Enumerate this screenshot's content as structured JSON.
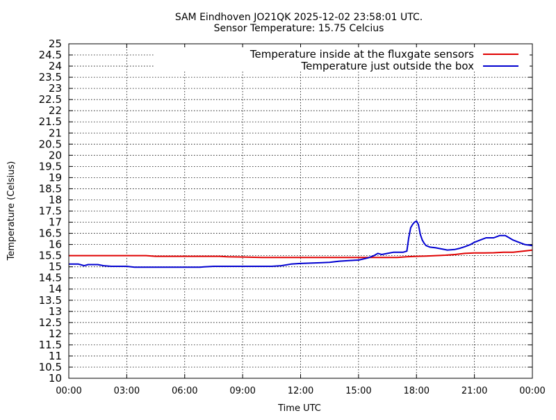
{
  "chart_data": {
    "type": "line",
    "title": "SAM Eindhoven JO21QK 2025-12-02 23:58:01 UTC.",
    "subtitle": "Sensor Temperature: 15.75 Celcius",
    "xlabel": "Time UTC",
    "ylabel": "Temperature (Celsius)",
    "xlim": [
      0,
      24
    ],
    "ylim": [
      10,
      25
    ],
    "grid": true,
    "legend_placement": "top-right",
    "x_ticks": [
      0,
      3,
      6,
      9,
      12,
      15,
      18,
      21,
      24
    ],
    "x_tick_labels": [
      "00:00",
      "03:00",
      "06:00",
      "09:00",
      "12:00",
      "15:00",
      "18:00",
      "21:00",
      "00:00"
    ],
    "y_ticks": [
      10,
      10.5,
      11,
      11.5,
      12,
      12.5,
      13,
      13.5,
      14,
      14.5,
      15,
      15.5,
      16,
      16.5,
      17,
      17.5,
      18,
      18.5,
      19,
      19.5,
      20,
      20.5,
      21,
      21.5,
      22,
      22.5,
      23,
      23.5,
      24,
      24.5,
      25
    ],
    "y_tick_labels": [
      "10",
      "10.5",
      "11",
      "11.5",
      "12",
      "12.5",
      "13",
      "13.5",
      "14",
      "14.5",
      "15",
      "15.5",
      "16",
      "16.5",
      "17",
      "17.5",
      "18",
      "18.5",
      "19",
      "19.5",
      "20",
      "20.5",
      "21",
      "21.5",
      "22",
      "22.5",
      "23",
      "23.5",
      "24",
      "24.5",
      "25"
    ],
    "series": [
      {
        "name": "Temperature inside at the fluxgate sensors",
        "color": "#e00000",
        "x": [
          0,
          1,
          2,
          3,
          3.5,
          4,
          4.5,
          5,
          6,
          7,
          7.8,
          8.2,
          9,
          10,
          11,
          12,
          13,
          14,
          15,
          15.5,
          16,
          16.5,
          17,
          17.5,
          18,
          18.5,
          19,
          19.5,
          20,
          20.5,
          21,
          21.5,
          22,
          22.5,
          23,
          23.3,
          23.7,
          24
        ],
        "y": [
          15.5,
          15.5,
          15.5,
          15.5,
          15.5,
          15.5,
          15.47,
          15.47,
          15.47,
          15.47,
          15.47,
          15.45,
          15.44,
          15.42,
          15.42,
          15.42,
          15.42,
          15.42,
          15.42,
          15.42,
          15.42,
          15.42,
          15.42,
          15.45,
          15.47,
          15.48,
          15.5,
          15.52,
          15.55,
          15.6,
          15.62,
          15.62,
          15.63,
          15.65,
          15.65,
          15.68,
          15.72,
          15.75
        ]
      },
      {
        "name": "Temperature just outside the box",
        "color": "#0000d0",
        "x": [
          0,
          0.5,
          0.8,
          1.0,
          1.5,
          1.8,
          2.2,
          3.0,
          3.4,
          4.0,
          5.0,
          6.0,
          6.8,
          7.0,
          7.5,
          8.0,
          9.0,
          10.0,
          10.5,
          11.0,
          11.5,
          12.0,
          13.0,
          13.5,
          14.0,
          14.5,
          15.0,
          15.5,
          15.8,
          16.0,
          16.2,
          16.5,
          16.8,
          17.0,
          17.3,
          17.5,
          17.6,
          17.7,
          17.8,
          17.9,
          18.0,
          18.1,
          18.2,
          18.3,
          18.4,
          18.5,
          18.7,
          19.0,
          19.3,
          19.6,
          20.0,
          20.2,
          20.5,
          20.8,
          21.0,
          21.3,
          21.6,
          22.0,
          22.3,
          22.6,
          22.8,
          23.0,
          23.3,
          23.6,
          24.0
        ],
        "y": [
          15.12,
          15.12,
          15.05,
          15.1,
          15.1,
          15.05,
          15.02,
          15.02,
          14.98,
          14.98,
          14.98,
          14.98,
          14.98,
          15.0,
          15.02,
          15.02,
          15.02,
          15.02,
          15.02,
          15.05,
          15.12,
          15.15,
          15.18,
          15.2,
          15.25,
          15.28,
          15.3,
          15.4,
          15.5,
          15.6,
          15.55,
          15.6,
          15.65,
          15.65,
          15.65,
          15.7,
          16.3,
          16.75,
          16.9,
          17.0,
          17.05,
          16.9,
          16.45,
          16.2,
          16.05,
          15.95,
          15.88,
          15.85,
          15.8,
          15.75,
          15.78,
          15.82,
          15.9,
          16.0,
          16.1,
          16.2,
          16.3,
          16.3,
          16.4,
          16.4,
          16.3,
          16.2,
          16.1,
          16.0,
          15.95
        ]
      }
    ]
  }
}
